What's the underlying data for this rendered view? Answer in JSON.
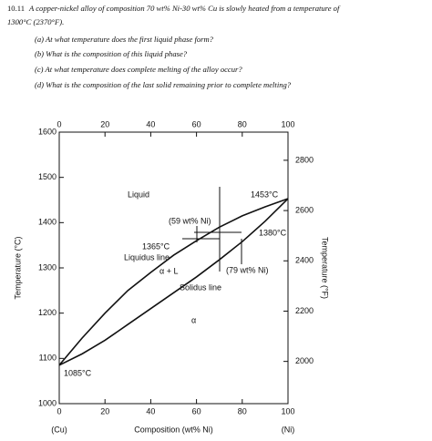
{
  "problem": {
    "number": "10.11",
    "lines": [
      "A copper-nickel alloy of composition 70 wt% Ni-30 wt% Cu is slowly heated from a temperature of",
      "1300°C (2370°F)."
    ],
    "questions": [
      "(a) At what temperature does the first liquid phase form?",
      "(b) What is the composition of this liquid phase?",
      "(c) At what temperature does complete melting of the alloy occur?",
      "(d) What is the composition of the last solid remaining prior to complete melting?"
    ]
  },
  "figure": {
    "xlim": [
      0,
      100
    ],
    "xticks": [
      0,
      20,
      40,
      60,
      80,
      100
    ],
    "ylim": [
      1000,
      1600
    ],
    "yticks": [
      1000,
      1100,
      1200,
      1300,
      1400,
      1500,
      1600
    ],
    "y2lim": [
      1832,
      2912
    ],
    "y2ticks": [
      2000,
      2200,
      2400,
      2600,
      2800
    ],
    "xlabel": "Composition (wt% Ni)",
    "ylabel": "Temperature (°C)",
    "y2label": "Temperature (°F)",
    "x_left_label": "(Cu)",
    "x_right_label": "(Ni)",
    "series": [
      {
        "name": "Liquidus line",
        "x": [
          0,
          10,
          20,
          30,
          40,
          50,
          60,
          70,
          80,
          90,
          100
        ],
        "y": [
          1085,
          1145,
          1200,
          1250,
          1290,
          1328,
          1360,
          1390,
          1415,
          1435,
          1453
        ]
      },
      {
        "name": "Solidus line",
        "x": [
          0,
          10,
          20,
          30,
          40,
          50,
          60,
          70,
          80,
          90,
          100
        ],
        "y": [
          1085,
          1110,
          1140,
          1175,
          1210,
          1245,
          1280,
          1318,
          1358,
          1403,
          1453
        ]
      }
    ],
    "annotations": {
      "liquid": "Liquid",
      "ni_melt": "1453°C",
      "comp_59": "(59 wt% Ni)",
      "t_1380": "1380°C",
      "t_1365": "1365°C",
      "alpha_l": "α + L",
      "comp_79": "(79 wt% Ni)",
      "alpha": "α",
      "cu_melt": "1085°C"
    }
  }
}
